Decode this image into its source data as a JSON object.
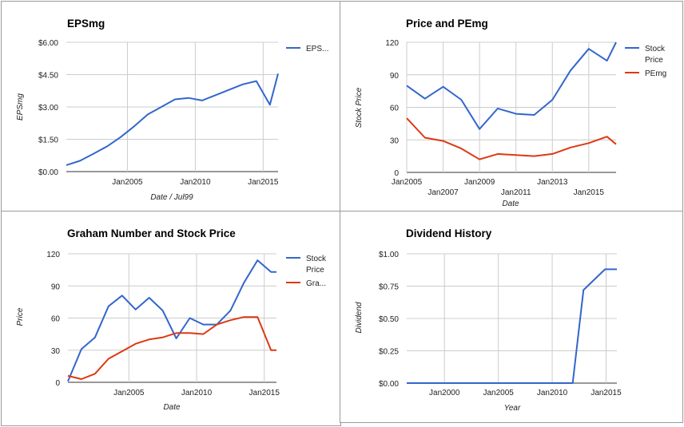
{
  "chart_data": [
    {
      "id": "eps",
      "type": "line",
      "title": "EPSmg",
      "xlabel": "Date / Jul99",
      "ylabel": "EPSmg",
      "ylim": [
        0,
        6
      ],
      "yticks": [
        0,
        1.5,
        3,
        4.5,
        6
      ],
      "ytick_labels": [
        "$0.00",
        "$1.50",
        "$3.00",
        "$4.50",
        "$6.00"
      ],
      "xlim": [
        2000.5,
        2016.1
      ],
      "xticks": [
        2005,
        2010,
        2015
      ],
      "xtick_labels": [
        "Jan2005",
        "Jan2010",
        "Jan2015"
      ],
      "legend_position": "right",
      "grid": true,
      "series": [
        {
          "name": "EPS...",
          "color": "#3366cc",
          "x": [
            2000.5,
            2001.5,
            2002.5,
            2003.5,
            2004.5,
            2005.5,
            2006.5,
            2007.5,
            2008.5,
            2009.5,
            2010.5,
            2011.5,
            2012.5,
            2013.5,
            2014.5,
            2015.5,
            2016.1
          ],
          "y": [
            0.3,
            0.5,
            0.83,
            1.17,
            1.6,
            2.1,
            2.65,
            3.0,
            3.35,
            3.42,
            3.3,
            3.55,
            3.8,
            4.05,
            4.2,
            3.1,
            4.55
          ]
        }
      ]
    },
    {
      "id": "pe",
      "type": "line",
      "title": "Price and PEmg",
      "xlabel": "Date",
      "ylabel": "Stock Price",
      "ylim": [
        0,
        120
      ],
      "yticks": [
        0,
        30,
        60,
        90,
        120
      ],
      "ytick_labels": [
        "0",
        "30",
        "60",
        "90",
        "120"
      ],
      "xlim": [
        2005.0,
        2016.5
      ],
      "xticks": [
        2005,
        2007,
        2009,
        2011,
        2013,
        2015
      ],
      "xtick_labels": [
        "Jan2005",
        "Jan2007",
        "Jan2009",
        "Jan2011",
        "Jan2013",
        "Jan2015"
      ],
      "legend_position": "right",
      "grid": true,
      "series": [
        {
          "name": "Stock Price",
          "color": "#3366cc",
          "x": [
            2005.0,
            2006.0,
            2007.0,
            2008.0,
            2009.0,
            2010.0,
            2011.0,
            2012.0,
            2013.0,
            2014.0,
            2015.0,
            2016.0,
            2016.5
          ],
          "y": [
            80,
            68,
            79,
            67,
            40,
            59,
            54,
            53,
            67,
            94,
            114,
            103,
            120
          ]
        },
        {
          "name": "PEmg",
          "color": "#dc3912",
          "x": [
            2005.0,
            2006.0,
            2007.0,
            2008.0,
            2009.0,
            2010.0,
            2011.0,
            2012.0,
            2013.0,
            2014.0,
            2015.0,
            2016.0,
            2016.5
          ],
          "y": [
            50,
            32,
            29,
            22,
            12,
            17,
            16,
            15,
            17,
            23,
            27,
            33,
            26
          ]
        }
      ]
    },
    {
      "id": "graham",
      "type": "line",
      "title": "Graham Number and Stock Price",
      "xlabel": "Date",
      "ylabel": "Price",
      "ylim": [
        0,
        120
      ],
      "yticks": [
        0,
        30,
        60,
        90,
        120
      ],
      "ytick_labels": [
        "0",
        "30",
        "60",
        "90",
        "120"
      ],
      "xlim": [
        2000.5,
        2015.9
      ],
      "xticks": [
        2005,
        2010,
        2015
      ],
      "xtick_labels": [
        "Jan2005",
        "Jan2010",
        "Jan2015"
      ],
      "legend_position": "right",
      "grid": true,
      "series": [
        {
          "name": "Stock Price",
          "color": "#3366cc",
          "x": [
            2000.5,
            2001.5,
            2002.5,
            2003.5,
            2004.5,
            2005.5,
            2006.5,
            2007.5,
            2008.5,
            2009.5,
            2010.5,
            2011.5,
            2012.5,
            2013.5,
            2014.5,
            2015.5,
            2015.9
          ],
          "y": [
            1,
            31,
            42,
            71,
            81,
            68,
            79,
            67,
            41,
            60,
            54,
            54,
            67,
            93,
            114,
            103,
            103
          ]
        },
        {
          "name": "Gra...",
          "color": "#dc3912",
          "x": [
            2000.5,
            2001.5,
            2002.5,
            2003.5,
            2004.5,
            2005.5,
            2006.5,
            2007.5,
            2008.5,
            2009.5,
            2010.5,
            2011.5,
            2012.5,
            2013.5,
            2014.5,
            2015.5,
            2015.9
          ],
          "y": [
            6,
            3,
            8,
            22,
            29,
            36,
            40,
            42,
            46,
            46,
            45,
            54,
            58,
            61,
            61,
            30,
            30
          ]
        }
      ]
    },
    {
      "id": "dividend",
      "type": "line",
      "title": "Dividend History",
      "xlabel": "Year",
      "ylabel": "Dividend",
      "ylim": [
        0,
        1
      ],
      "yticks": [
        0,
        0.25,
        0.5,
        0.75,
        1.0
      ],
      "ytick_labels": [
        "$0.00",
        "$0.25",
        "$0.50",
        "$0.75",
        "$1.00"
      ],
      "xlim": [
        1996.5,
        2016.0
      ],
      "xticks": [
        2000,
        2005,
        2010,
        2015
      ],
      "xtick_labels": [
        "Jan2000",
        "Jan2005",
        "Jan2010",
        "Jan2015"
      ],
      "legend_position": "none",
      "grid": true,
      "series": [
        {
          "name": "",
          "color": "#3366cc",
          "x": [
            1996.5,
            2011.9,
            2012.9,
            2014.9,
            2016.0
          ],
          "y": [
            0,
            0,
            0.72,
            0.88,
            0.88
          ]
        }
      ]
    }
  ]
}
